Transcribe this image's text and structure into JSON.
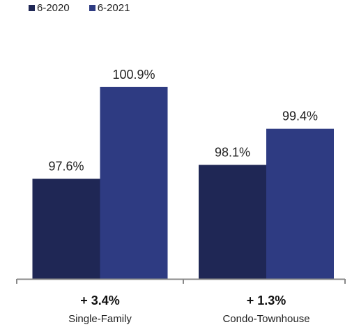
{
  "chart_data": {
    "type": "bar",
    "categories": [
      "Single-Family",
      "Condo-Townhouse"
    ],
    "series": [
      {
        "name": "6-2020",
        "values": [
          97.6,
          98.1
        ],
        "color": "#1f2755"
      },
      {
        "name": "6-2021",
        "values": [
          100.9,
          99.4
        ],
        "color": "#2e3b82"
      }
    ],
    "value_labels": [
      [
        "97.6%",
        "98.1%"
      ],
      [
        "100.9%",
        "99.4%"
      ]
    ],
    "change_labels": [
      "+ 3.4%",
      "+ 1.3%"
    ],
    "ylim": [
      94.0,
      102.0
    ],
    "legend_position": "top-left",
    "grid": false,
    "axis_color": "#888888"
  }
}
